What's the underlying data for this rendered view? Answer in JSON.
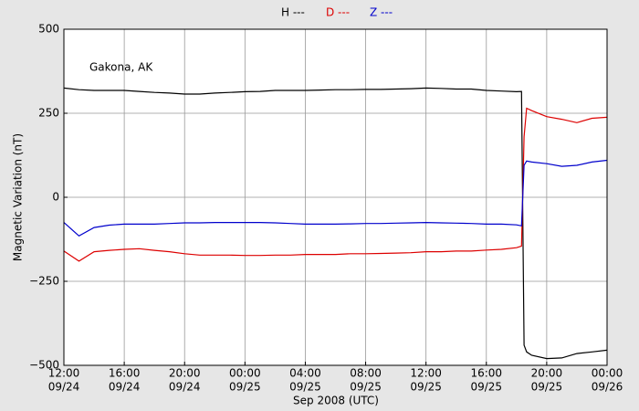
{
  "chart_data": {
    "type": "line",
    "annotation": "Gakona, AK",
    "x_label": "Sep 2008 (UTC)",
    "y_label": "Magnetic Variation (nT)",
    "x": [
      "2008-09-24T12:00",
      "2008-09-24T13:00",
      "2008-09-24T14:00",
      "2008-09-24T15:00",
      "2008-09-24T16:00",
      "2008-09-24T17:00",
      "2008-09-24T18:00",
      "2008-09-24T19:00",
      "2008-09-24T20:00",
      "2008-09-24T21:00",
      "2008-09-24T22:00",
      "2008-09-24T23:00",
      "2008-09-25T00:00",
      "2008-09-25T01:00",
      "2008-09-25T02:00",
      "2008-09-25T03:00",
      "2008-09-25T04:00",
      "2008-09-25T05:00",
      "2008-09-25T06:00",
      "2008-09-25T07:00",
      "2008-09-25T08:00",
      "2008-09-25T09:00",
      "2008-09-25T10:00",
      "2008-09-25T11:00",
      "2008-09-25T12:00",
      "2008-09-25T13:00",
      "2008-09-25T14:00",
      "2008-09-25T15:00",
      "2008-09-25T16:00",
      "2008-09-25T17:00",
      "2008-09-25T18:00",
      "2008-09-25T18:20",
      "2008-09-25T18:30",
      "2008-09-25T18:40",
      "2008-09-25T19:00",
      "2008-09-25T20:00",
      "2008-09-25T21:00",
      "2008-09-25T22:00",
      "2008-09-25T23:00",
      "2008-09-26T00:00"
    ],
    "series": [
      {
        "name": "H ---",
        "color": "#000000",
        "values": [
          325,
          320,
          318,
          318,
          318,
          315,
          312,
          310,
          307,
          307,
          310,
          312,
          314,
          315,
          318,
          318,
          318,
          319,
          320,
          320,
          321,
          321,
          322,
          323,
          325,
          324,
          322,
          322,
          318,
          316,
          314,
          315,
          -440,
          -460,
          -470,
          -480,
          -478,
          -465,
          -460,
          -455
        ]
      },
      {
        "name": "D ---",
        "color": "#dd0000",
        "values": [
          -160,
          -190,
          -162,
          -158,
          -155,
          -153,
          -158,
          -162,
          -168,
          -172,
          -172,
          -172,
          -173,
          -173,
          -172,
          -172,
          -170,
          -170,
          -170,
          -168,
          -168,
          -167,
          -166,
          -165,
          -162,
          -162,
          -160,
          -160,
          -157,
          -155,
          -150,
          -145,
          180,
          265,
          258,
          240,
          232,
          222,
          235,
          238
        ]
      },
      {
        "name": "Z ---",
        "color": "#0000cc",
        "values": [
          -75,
          -115,
          -90,
          -83,
          -80,
          -80,
          -80,
          -78,
          -76,
          -76,
          -75,
          -75,
          -75,
          -75,
          -76,
          -78,
          -80,
          -80,
          -80,
          -79,
          -78,
          -78,
          -77,
          -76,
          -75,
          -76,
          -77,
          -78,
          -80,
          -80,
          -82,
          -85,
          95,
          108,
          105,
          100,
          92,
          95,
          105,
          110
        ]
      }
    ],
    "xlim": [
      "2008-09-24T12:00",
      "2008-09-26T00:00"
    ],
    "xticks": [
      {
        "value": "2008-09-24T12:00",
        "label": [
          "12:00",
          "09/24"
        ]
      },
      {
        "value": "2008-09-24T16:00",
        "label": [
          "16:00",
          "09/24"
        ]
      },
      {
        "value": "2008-09-24T20:00",
        "label": [
          "20:00",
          "09/24"
        ]
      },
      {
        "value": "2008-09-25T00:00",
        "label": [
          "00:00",
          "09/25"
        ]
      },
      {
        "value": "2008-09-25T04:00",
        "label": [
          "04:00",
          "09/25"
        ]
      },
      {
        "value": "2008-09-25T08:00",
        "label": [
          "08:00",
          "09/25"
        ]
      },
      {
        "value": "2008-09-25T12:00",
        "label": [
          "12:00",
          "09/25"
        ]
      },
      {
        "value": "2008-09-25T16:00",
        "label": [
          "16:00",
          "09/25"
        ]
      },
      {
        "value": "2008-09-25T20:00",
        "label": [
          "20:00",
          "09/25"
        ]
      },
      {
        "value": "2008-09-26T00:00",
        "label": [
          "00:00",
          "09/26"
        ]
      }
    ],
    "ylim": [
      -500,
      500
    ],
    "yticks": [
      {
        "value": -500,
        "label": "−500"
      },
      {
        "value": -250,
        "label": "−250"
      },
      0,
      250,
      500
    ],
    "grid": true
  }
}
